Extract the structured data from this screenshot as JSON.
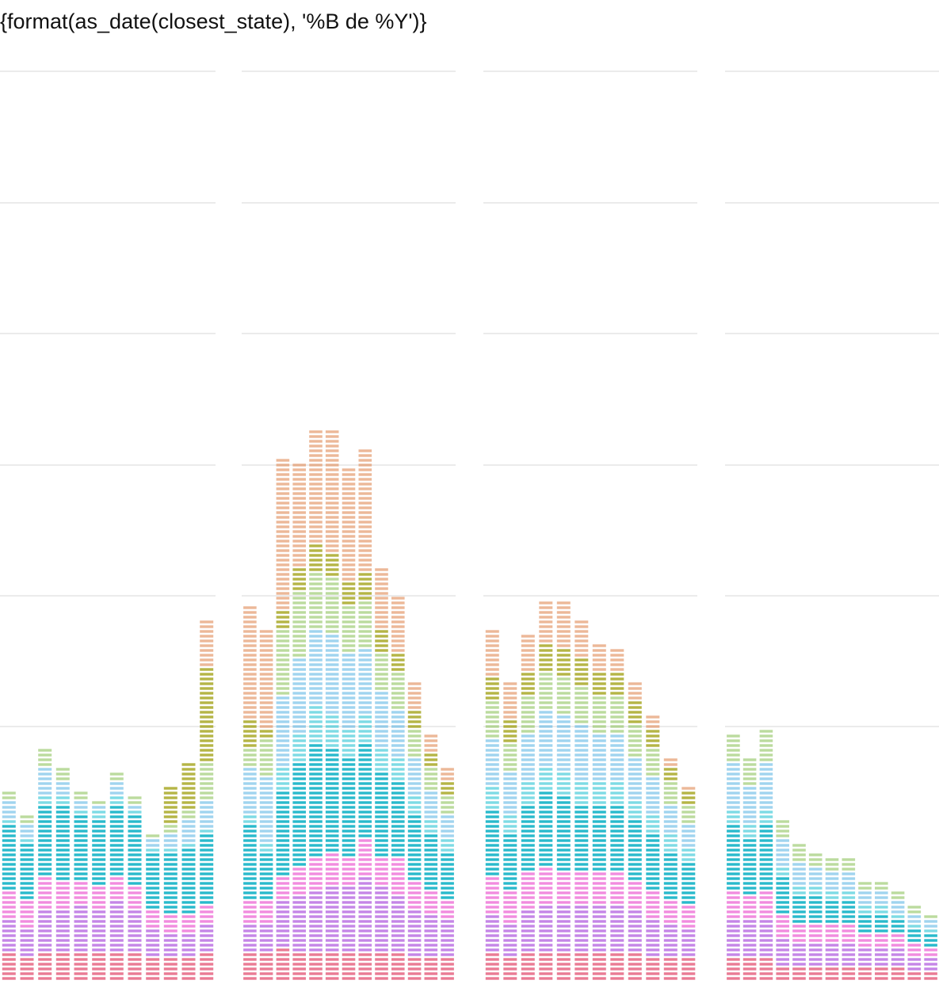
{
  "chart_data": {
    "type": "bar",
    "title": "{format(as_date(closest_state), '%B de %Y')}",
    "xlabel": "",
    "ylabel": "",
    "grid": true,
    "legend": "none",
    "panels": 4,
    "category_colors": [
      "#e9748e",
      "#c27fe6",
      "#ec66d4",
      "#1eb6c9",
      "#14bed0",
      "#41a9e0",
      "#8dc35e",
      "#a2a218",
      "#df8854",
      "#28b86f"
    ],
    "bands": [
      "#e9748e",
      "#c27fe6",
      "#14bed0",
      "#8dc35e",
      "#df8854"
    ],
    "panel_data": [
      {
        "columns": [
          {
            "values": [
              6,
              7,
              6,
              14,
              1,
              4,
              2,
              0,
              0
            ]
          },
          {
            "values": [
              5,
              6,
              6,
              12,
              1,
              3,
              2,
              0,
              0
            ]
          },
          {
            "values": [
              6,
              9,
              7,
              15,
              2,
              6,
              4,
              0,
              0
            ]
          },
          {
            "values": [
              6,
              9,
              6,
              16,
              2,
              3,
              3,
              0,
              0
            ]
          },
          {
            "values": [
              6,
              10,
              5,
              14,
              1,
              2,
              2,
              0,
              0
            ]
          },
          {
            "values": [
              6,
              9,
              5,
              14,
              2,
              1,
              1,
              0,
              0
            ]
          },
          {
            "values": [
              6,
              11,
              5,
              15,
              2,
              3,
              2,
              0,
              0
            ]
          },
          {
            "values": [
              6,
              9,
              5,
              15,
              1,
              1,
              2,
              0,
              0
            ]
          },
          {
            "values": [
              5,
              6,
              4,
              12,
              1,
              2,
              1,
              0,
              0
            ]
          },
          {
            "values": [
              5,
              5,
              4,
              13,
              1,
              3,
              2,
              8,
              0
            ]
          },
          {
            "values": [
              5,
              5,
              4,
              14,
              1,
              5,
              2,
              10,
              0
            ]
          },
          {
            "values": [
              6,
              6,
              4,
              15,
              1,
              6,
              8,
              20,
              10
            ]
          }
        ]
      },
      {
        "columns": [
          {
            "values": [
              6,
              6,
              5,
              16,
              2,
              10,
              4,
              6,
              24
            ]
          },
          {
            "values": [
              6,
              6,
              5,
              10,
              2,
              14,
              8,
              2,
              21
            ]
          },
          {
            "values": [
              7,
              10,
              5,
              18,
              5,
              15,
              14,
              4,
              32
            ]
          },
          {
            "values": [
              6,
              12,
              6,
              22,
              6,
              16,
              14,
              5,
              22
            ]
          },
          {
            "values": [
              6,
              13,
              7,
              24,
              8,
              16,
              12,
              6,
              24
            ]
          },
          {
            "values": [
              6,
              14,
              7,
              22,
              7,
              17,
              12,
              5,
              26
            ]
          },
          {
            "values": [
              6,
              14,
              6,
              21,
              6,
              16,
              10,
              5,
              24
            ]
          },
          {
            "values": [
              6,
              16,
              8,
              20,
              6,
              14,
              10,
              6,
              26
            ]
          },
          {
            "values": [
              6,
              14,
              6,
              18,
              5,
              12,
              8,
              5,
              13
            ]
          },
          {
            "values": [
              6,
              12,
              8,
              16,
              5,
              10,
              8,
              4,
              12
            ]
          },
          {
            "values": [
              5,
              10,
              6,
              14,
              4,
              8,
              6,
              4,
              6
            ]
          },
          {
            "values": [
              5,
              9,
              5,
              12,
              3,
              6,
              5,
              3,
              4
            ]
          },
          {
            "values": [
              5,
              8,
              4,
              10,
              3,
              5,
              4,
              3,
              3
            ]
          }
        ]
      },
      {
        "columns": [
          {
            "values": [
              6,
              8,
              8,
              14,
              5,
              10,
              8,
              5,
              10
            ]
          },
          {
            "values": [
              5,
              7,
              7,
              12,
              4,
              9,
              6,
              5,
              8
            ]
          },
          {
            "values": [
              6,
              9,
              8,
              14,
              5,
              10,
              8,
              5,
              8
            ]
          },
          {
            "values": [
              6,
              10,
              8,
              16,
              5,
              12,
              8,
              6,
              9
            ]
          },
          {
            "values": [
              6,
              10,
              7,
              16,
              5,
              12,
              8,
              6,
              10
            ]
          },
          {
            "values": [
              6,
              10,
              7,
              14,
              5,
              12,
              8,
              6,
              8
            ]
          },
          {
            "values": [
              6,
              10,
              7,
              14,
              5,
              10,
              8,
              5,
              6
            ]
          },
          {
            "values": [
              6,
              10,
              7,
              14,
              5,
              10,
              8,
              5,
              5
            ]
          },
          {
            "values": [
              6,
              9,
              6,
              13,
              4,
              9,
              7,
              5,
              4
            ]
          },
          {
            "values": [
              5,
              8,
              6,
              12,
              4,
              8,
              6,
              4,
              3
            ]
          },
          {
            "values": [
              5,
              7,
              5,
              10,
              4,
              6,
              5,
              3,
              2
            ]
          },
          {
            "values": [
              5,
              6,
              5,
              9,
              3,
              5,
              4,
              3,
              1
            ]
          }
        ]
      },
      {
        "columns": [
          {
            "values": [
              5,
              8,
              6,
              14,
              3,
              10,
              6
            ]
          },
          {
            "values": [
              5,
              8,
              5,
              12,
              3,
              8,
              6
            ]
          },
          {
            "values": [
              5,
              8,
              6,
              14,
              3,
              10,
              7
            ]
          },
          {
            "values": [
              3,
              6,
              5,
              8,
              2,
              6,
              4
            ]
          },
          {
            "values": [
              3,
              5,
              4,
              6,
              2,
              5,
              4
            ]
          },
          {
            "values": [
              3,
              5,
              4,
              6,
              2,
              4,
              3
            ]
          },
          {
            "values": [
              3,
              5,
              4,
              5,
              2,
              4,
              3
            ]
          },
          {
            "values": [
              3,
              5,
              4,
              5,
              2,
              4,
              3
            ]
          },
          {
            "values": [
              3,
              4,
              3,
              4,
              2,
              3,
              2
            ]
          },
          {
            "values": [
              3,
              4,
              3,
              4,
              2,
              3,
              2
            ]
          },
          {
            "values": [
              3,
              4,
              3,
              3,
              1,
              3,
              2
            ]
          },
          {
            "values": [
              2,
              3,
              3,
              3,
              1,
              2,
              2
            ]
          },
          {
            "values": [
              2,
              3,
              2,
              3,
              1,
              2,
              1
            ]
          }
        ]
      }
    ]
  }
}
